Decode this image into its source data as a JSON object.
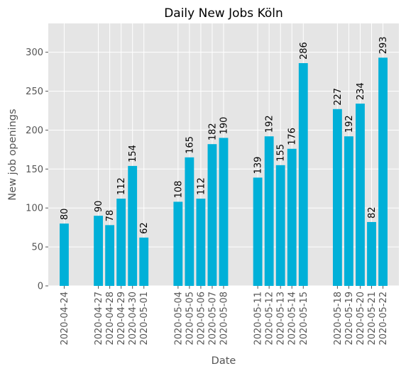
{
  "chart_data": {
    "type": "bar",
    "title": "Daily New Jobs Köln",
    "xlabel": "Date",
    "ylabel": "New job openings",
    "ylim": [
      0,
      337
    ],
    "yticks": [
      0,
      50,
      100,
      150,
      200,
      250,
      300
    ],
    "grid": true,
    "bar_color": "#00b0d8",
    "background_color": "#e5e5e5",
    "grid_color": "#ffffff",
    "points": [
      {
        "date": "2020-04-24",
        "value": 80
      },
      {
        "date": "2020-04-27",
        "value": 90
      },
      {
        "date": "2020-04-28",
        "value": 78
      },
      {
        "date": "2020-04-29",
        "value": 112
      },
      {
        "date": "2020-04-30",
        "value": 154
      },
      {
        "date": "2020-05-01",
        "value": 62
      },
      {
        "date": "2020-05-04",
        "value": 108
      },
      {
        "date": "2020-05-05",
        "value": 165
      },
      {
        "date": "2020-05-06",
        "value": 112
      },
      {
        "date": "2020-05-07",
        "value": 182
      },
      {
        "date": "2020-05-08",
        "value": 190
      },
      {
        "date": "2020-05-11",
        "value": 139
      },
      {
        "date": "2020-05-12",
        "value": 192
      },
      {
        "date": "2020-05-13",
        "value": 155
      },
      {
        "date": "2020-05-14",
        "value": 176
      },
      {
        "date": "2020-05-15",
        "value": 286
      },
      {
        "date": "2020-05-18",
        "value": 227
      },
      {
        "date": "2020-05-19",
        "value": 192
      },
      {
        "date": "2020-05-20",
        "value": 234
      },
      {
        "date": "2020-05-21",
        "value": 82
      },
      {
        "date": "2020-05-22",
        "value": 293
      }
    ]
  }
}
